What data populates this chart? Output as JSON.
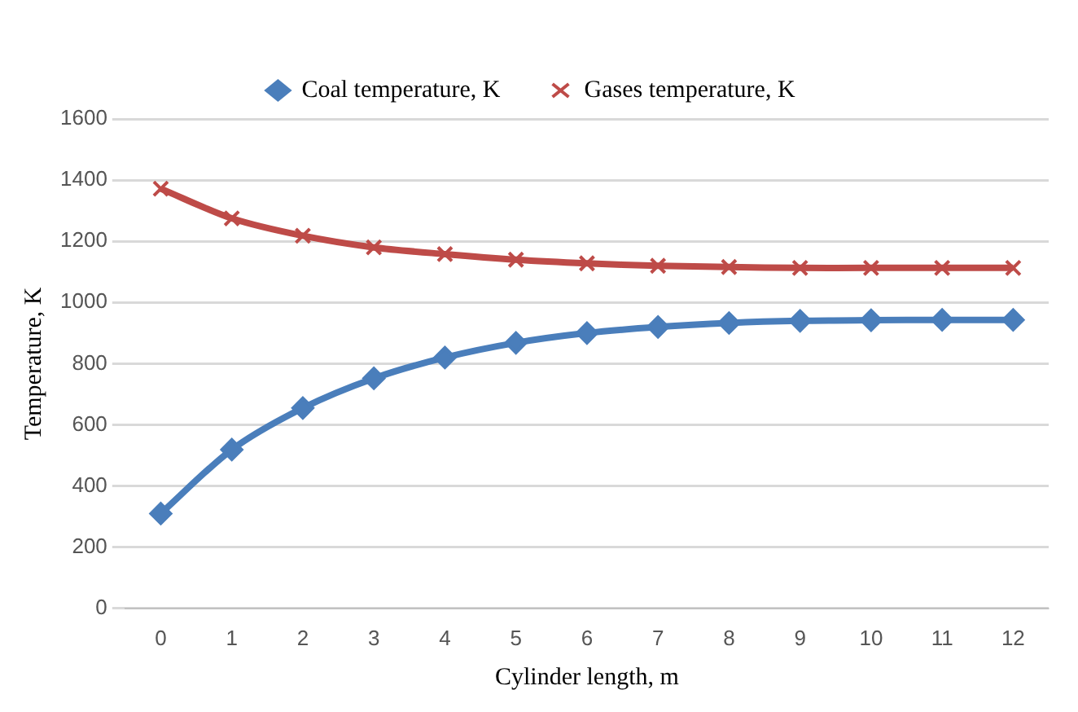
{
  "chart_data": {
    "type": "line",
    "xlabel": "Cylinder length, m",
    "ylabel": "Temperature, K",
    "x": [
      0,
      1,
      2,
      3,
      4,
      5,
      6,
      7,
      8,
      9,
      10,
      11,
      12
    ],
    "xlim": [
      -0.5,
      12.5
    ],
    "xticks": [
      0,
      1,
      2,
      3,
      4,
      5,
      6,
      7,
      8,
      9,
      10,
      11,
      12
    ],
    "series": [
      {
        "name": "Coal temperature, K",
        "color": "#4a7ebb",
        "marker": "diamond",
        "values": [
          310,
          519,
          655,
          752,
          820,
          868,
          900,
          920,
          933,
          940,
          942,
          943,
          943
        ]
      },
      {
        "name": "Gases temperature, K",
        "color": "#be4b48",
        "marker": "cross",
        "values": [
          1372,
          1275,
          1218,
          1180,
          1158,
          1140,
          1128,
          1120,
          1116,
          1113,
          1113,
          1113,
          1113
        ]
      }
    ],
    "ylim": [
      0,
      1600
    ],
    "yticks": [
      0,
      200,
      400,
      600,
      800,
      1000,
      1200,
      1400,
      1600
    ],
    "grid": "y",
    "legend": "top",
    "line_style": "solid"
  }
}
